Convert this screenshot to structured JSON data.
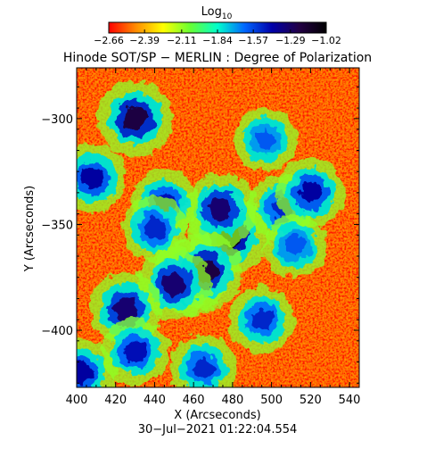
{
  "chart_data": {
    "type": "heatmap",
    "title": "Hinode SOT/SP − MERLIN : Degree of Polarization",
    "colorbar": {
      "label_base": "Log",
      "label_sub": "10",
      "tick_labels": [
        "−2.66",
        "−2.39",
        "−2.11",
        "−1.84",
        "−1.57",
        "−1.29",
        "−1.02"
      ],
      "tick_values": [
        -2.66,
        -2.39,
        -2.11,
        -1.84,
        -1.57,
        -1.29,
        -1.02
      ],
      "range": [
        -2.66,
        -1.02
      ],
      "colormap_stops": [
        "#ff0000",
        "#ff8c00",
        "#ffff00",
        "#66ff33",
        "#00ffcc",
        "#0066ff",
        "#0000aa",
        "#220044",
        "#000000"
      ]
    },
    "xlabel": "X (Arcseconds)",
    "ylabel": "Y (Arcseconds)",
    "xlim": [
      400,
      545
    ],
    "ylim": [
      -427,
      -276
    ],
    "xticks": [
      400,
      420,
      440,
      460,
      480,
      500,
      520,
      540
    ],
    "xtick_labels": [
      "400",
      "420",
      "440",
      "460",
      "480",
      "500",
      "520",
      "540"
    ],
    "yticks": [
      -300,
      -350,
      -400
    ],
    "ytick_labels": [
      "−300",
      "−350",
      "−400"
    ],
    "timestamp": "30−Jul−2021 01:22:04.554",
    "background_level": -2.6,
    "high_polarization_regions": [
      {
        "x": 478,
        "y": -355,
        "level": -1.1
      },
      {
        "x": 474,
        "y": -343,
        "level": -1.3
      },
      {
        "x": 458,
        "y": -375,
        "level": -1.15
      },
      {
        "x": 466,
        "y": -372,
        "level": -1.2
      },
      {
        "x": 450,
        "y": -378,
        "level": -1.3
      },
      {
        "x": 445,
        "y": -340,
        "level": -1.45
      },
      {
        "x": 440,
        "y": -352,
        "level": -1.5
      },
      {
        "x": 430,
        "y": -300,
        "level": -1.2
      },
      {
        "x": 425,
        "y": -390,
        "level": -1.3
      },
      {
        "x": 430,
        "y": -410,
        "level": -1.45
      },
      {
        "x": 402,
        "y": -420,
        "level": -1.4
      },
      {
        "x": 408,
        "y": -328,
        "level": -1.4
      },
      {
        "x": 505,
        "y": -342,
        "level": -1.5
      },
      {
        "x": 495,
        "y": -395,
        "level": -1.5
      },
      {
        "x": 497,
        "y": -310,
        "level": -1.6
      },
      {
        "x": 520,
        "y": -335,
        "level": -1.4
      },
      {
        "x": 465,
        "y": -418,
        "level": -1.5
      },
      {
        "x": 512,
        "y": -360,
        "level": -1.6
      }
    ],
    "grid": false
  }
}
